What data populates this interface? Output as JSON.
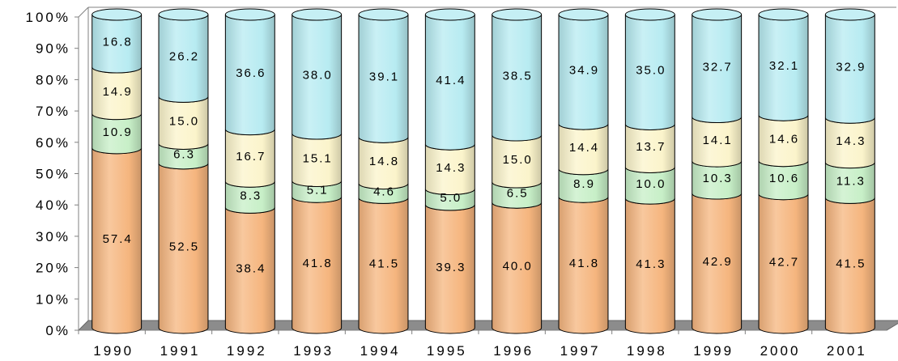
{
  "chart_data": {
    "type": "bar",
    "stacked": true,
    "percent": true,
    "style": "3d-cylinder",
    "grid": false,
    "legend": "none",
    "title": "",
    "xlabel": "",
    "ylabel": "",
    "ylim": [
      0,
      100
    ],
    "y_ticks": [
      "0%",
      "10%",
      "20%",
      "30%",
      "40%",
      "50%",
      "60%",
      "70%",
      "80%",
      "90%",
      "100%"
    ],
    "categories": [
      "1990",
      "1991",
      "1992",
      "1993",
      "1994",
      "1995",
      "1996",
      "1997",
      "1998",
      "1999",
      "2000",
      "2001"
    ],
    "series": [
      {
        "values": [
          57.4,
          52.5,
          38.4,
          41.8,
          41.5,
          39.3,
          40.0,
          41.8,
          41.3,
          42.9,
          42.7,
          41.5
        ],
        "color": "#F5B57E"
      },
      {
        "values": [
          10.9,
          6.3,
          8.3,
          5.1,
          4.6,
          5.0,
          6.5,
          8.9,
          10.0,
          10.3,
          10.6,
          11.3
        ],
        "color": "#C7EFC7"
      },
      {
        "values": [
          14.9,
          15.0,
          16.7,
          15.1,
          14.8,
          14.3,
          15.0,
          14.4,
          13.7,
          14.1,
          14.6,
          14.3
        ],
        "color": "#FBF4CB"
      },
      {
        "values": [
          16.8,
          26.2,
          36.6,
          38.0,
          39.1,
          41.4,
          38.5,
          34.9,
          35.0,
          32.7,
          32.1,
          32.9
        ],
        "color": "#B7EBF1"
      }
    ],
    "floor_color": "#8C8C8C",
    "axis_color": "#808080"
  }
}
